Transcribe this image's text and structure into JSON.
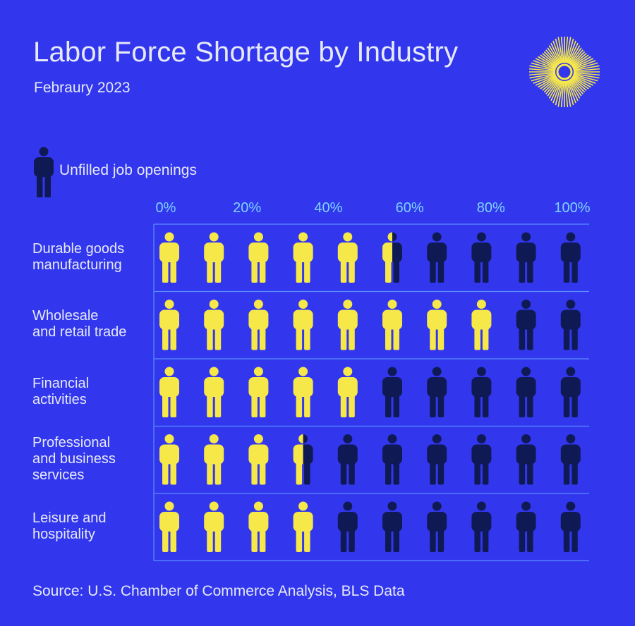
{
  "header": {
    "title": "Labor Force Shortage by Industry",
    "subtitle": "Febraury 2023"
  },
  "legend": {
    "label": "Unfilled job openings",
    "icon": "person-icon"
  },
  "source": "Source: U.S. Chamber of Commerce Analysis, BLS Data",
  "colors": {
    "background": "#3237EE",
    "filled_person": "#F7E84A",
    "unfilled_person": "#0F1A55",
    "tick_labels": "#7FD3FF",
    "gridlines": "#5A8CFF",
    "text": "#E6E9F8",
    "logo": "#F7E84A"
  },
  "chart_data": {
    "type": "bar",
    "encoding": "isotype",
    "title": "Labor Force Shortage by Industry",
    "subtitle": "Febraury 2023",
    "x_ticks": [
      "0%",
      "20%",
      "40%",
      "60%",
      "80%",
      "100%"
    ],
    "xlim": [
      0,
      100
    ],
    "units_per_icon": 10,
    "categories": [
      [
        "Durable goods",
        "manufacturing"
      ],
      [
        "Wholesale",
        "and retail trade"
      ],
      [
        "Financial",
        "activities"
      ],
      [
        "Professional",
        "and business",
        "services"
      ],
      [
        "Leisure and",
        "hospitality"
      ]
    ],
    "values": [
      55,
      80,
      50,
      35,
      40
    ],
    "legend": [
      {
        "name": "Unfilled job openings",
        "icon": "person-icon"
      }
    ]
  }
}
